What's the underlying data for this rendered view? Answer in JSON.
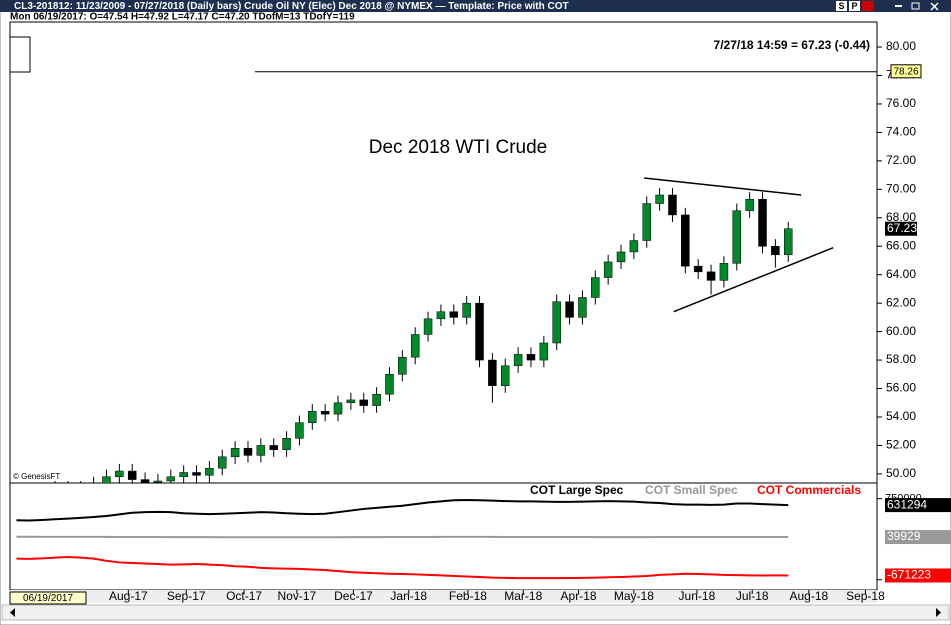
{
  "header": {
    "title": "CL3-201812:  11/23/2009 - 07/27/2018  (Daily bars)   Crude Oil NY (Elec) Dec 2018 @ NYMEX  —  Template: Price with COT",
    "buttons": [
      "S",
      "P"
    ],
    "info": "Mon 06/19/2017:  O=47.54  H=47.92  L=47.17  C=47.20  TDofM=13  TDofY=119",
    "cursor_date": "06/19/2017"
  },
  "chart_data": [
    {
      "type": "candlestick",
      "title": "Dec 2018 WTI Crude",
      "quote": "7/27/18 14:59 = 67.23 (-0.44)",
      "watermark": "© GenesisFT",
      "open": [
        47.54,
        47.2,
        47.8,
        48.3,
        49.0,
        48.6,
        49.0,
        49.3,
        49.8,
        50.2,
        49.6,
        49.4,
        49.5,
        49.8,
        50.1,
        49.9,
        50.4,
        51.2,
        51.8,
        51.3,
        52.0,
        51.7,
        52.5,
        53.6,
        54.4,
        54.2,
        55.0,
        55.2,
        54.8,
        55.6,
        57.0,
        58.2,
        59.8,
        60.9,
        61.4,
        61.0,
        62.0,
        58.0,
        56.2,
        57.6,
        58.4,
        58.0,
        59.2,
        62.1,
        61.0,
        62.4,
        63.8,
        64.9,
        65.6,
        66.4,
        69.0,
        69.6,
        68.2,
        64.6,
        64.2,
        63.6,
        64.8,
        68.5,
        69.3,
        66.0,
        65.4
      ],
      "high": [
        47.92,
        48.3,
        48.8,
        49.5,
        49.5,
        49.5,
        49.8,
        50.3,
        50.7,
        50.7,
        50.1,
        50.0,
        50.3,
        50.6,
        50.6,
        50.9,
        51.7,
        52.3,
        52.3,
        52.5,
        52.5,
        53.0,
        54.1,
        54.9,
        54.9,
        55.5,
        55.7,
        55.7,
        56.1,
        57.5,
        58.7,
        60.3,
        61.4,
        61.9,
        61.9,
        62.5,
        62.5,
        58.5,
        58.1,
        58.9,
        58.9,
        59.7,
        62.6,
        62.6,
        62.9,
        64.3,
        65.4,
        66.1,
        66.9,
        69.5,
        70.1,
        70.1,
        68.7,
        65.1,
        64.7,
        65.3,
        69.0,
        69.8,
        69.8,
        66.5,
        67.7
      ],
      "low": [
        47.17,
        46.9,
        47.3,
        47.8,
        48.1,
        48.1,
        48.5,
        48.8,
        49.3,
        49.1,
        48.9,
        48.9,
        49.0,
        49.3,
        49.4,
        49.4,
        49.9,
        50.7,
        50.8,
        50.8,
        51.2,
        51.2,
        52.0,
        53.1,
        53.7,
        53.7,
        54.5,
        54.3,
        54.3,
        55.1,
        56.5,
        57.7,
        59.3,
        60.4,
        60.5,
        60.5,
        57.5,
        55.0,
        55.7,
        57.1,
        57.5,
        57.5,
        58.7,
        60.5,
        60.5,
        61.9,
        63.3,
        64.4,
        65.1,
        65.9,
        68.5,
        67.7,
        64.1,
        63.7,
        62.6,
        63.1,
        64.3,
        68.0,
        65.5,
        64.5,
        64.9
      ],
      "close": [
        47.2,
        47.8,
        48.3,
        49.0,
        48.6,
        49.0,
        49.3,
        49.8,
        50.2,
        49.6,
        49.4,
        49.5,
        49.8,
        50.1,
        49.9,
        50.4,
        51.2,
        51.8,
        51.3,
        52.0,
        51.7,
        52.5,
        53.6,
        54.4,
        54.2,
        55.0,
        55.2,
        54.8,
        55.6,
        57.0,
        58.2,
        59.8,
        60.9,
        61.4,
        61.0,
        62.0,
        58.0,
        56.2,
        57.6,
        58.4,
        58.0,
        59.2,
        62.1,
        61.0,
        62.4,
        63.8,
        64.9,
        65.6,
        66.4,
        69.0,
        69.6,
        68.2,
        64.6,
        64.2,
        63.6,
        64.8,
        68.5,
        69.3,
        66.0,
        65.4,
        67.23
      ],
      "up_color": "#00882a",
      "down_color": "#000000",
      "ylim": [
        49.36,
        81.76
      ],
      "yticks": [
        {
          "value": 50,
          "label": "50.00"
        },
        {
          "value": 52,
          "label": "52.00"
        },
        {
          "value": 54,
          "label": "54.00"
        },
        {
          "value": 56,
          "label": "56.00"
        },
        {
          "value": 58,
          "label": "58.00"
        },
        {
          "value": 60,
          "label": "60.00"
        },
        {
          "value": 62,
          "label": "62.00"
        },
        {
          "value": 64,
          "label": "64.00"
        },
        {
          "value": 66,
          "label": "66.00"
        },
        {
          "value": 68,
          "label": "68.00"
        },
        {
          "value": 70,
          "label": "70.00"
        },
        {
          "value": 72,
          "label": "72.00"
        },
        {
          "value": 74,
          "label": "74.00"
        },
        {
          "value": 76,
          "label": "76.00"
        },
        {
          "value": 78,
          "label": "78.00"
        },
        {
          "value": 80,
          "label": "80.00"
        }
      ],
      "xlim": [
        -0.5,
        66.9
      ],
      "xticks": [
        {
          "value": 8.7,
          "label": "Aug-17"
        },
        {
          "value": 13.2,
          "label": "Sep-17"
        },
        {
          "value": 17.7,
          "label": "Oct-17"
        },
        {
          "value": 21.8,
          "label": "Nov-17"
        },
        {
          "value": 26.2,
          "label": "Dec-17"
        },
        {
          "value": 30.5,
          "label": "Jan-18"
        },
        {
          "value": 35.1,
          "label": "Feb-18"
        },
        {
          "value": 39.4,
          "label": "Mar-18"
        },
        {
          "value": 43.7,
          "label": "Apr-18"
        },
        {
          "value": 48.0,
          "label": "May-18"
        },
        {
          "value": 52.9,
          "label": "Jun-18"
        },
        {
          "value": 57.2,
          "label": "Jul-18"
        },
        {
          "value": 61.6,
          "label": "Aug-18"
        },
        {
          "value": 66.0,
          "label": "Sep-18"
        }
      ],
      "trendlines": [
        {
          "x": [
            48.8,
            61.0
          ],
          "y": [
            70.8,
            69.6
          ]
        },
        {
          "x": [
            51.1,
            63.5
          ],
          "y": [
            61.4,
            65.9
          ]
        }
      ],
      "reference_line": {
        "value": 78.26,
        "color": "#ffff99"
      }
    },
    {
      "type": "line",
      "ylim": [
        -940000,
        1040000
      ],
      "yticks": [
        -750000,
        750000
      ],
      "series": [
        {
          "name": "COT Large Spec",
          "color": "#000000",
          "values": [
            350000,
            345000,
            355000,
            370000,
            380000,
            395000,
            410000,
            430000,
            460000,
            490000,
            500000,
            505000,
            500000,
            480000,
            470000,
            465000,
            470000,
            480000,
            490000,
            500000,
            495000,
            480000,
            470000,
            465000,
            470000,
            500000,
            530000,
            560000,
            580000,
            600000,
            620000,
            650000,
            680000,
            700000,
            720000,
            725000,
            720000,
            715000,
            705000,
            700000,
            700000,
            695000,
            690000,
            690000,
            695000,
            700000,
            705000,
            700000,
            695000,
            680000,
            670000,
            650000,
            640000,
            640000,
            635000,
            640000,
            660000,
            660000,
            650000,
            640000,
            631294
          ]
        },
        {
          "name": "COT Small Spec",
          "color": "#999999",
          "values": [
            45000,
            45000,
            44000,
            44000,
            43000,
            43000,
            42000,
            42000,
            41000,
            41000,
            40000,
            40000,
            39000,
            39000,
            38000,
            38000,
            37000,
            37000,
            36000,
            36000,
            36000,
            35000,
            35000,
            35000,
            36000,
            37000,
            38000,
            38000,
            39000,
            40000,
            40000,
            41000,
            41000,
            42000,
            42000,
            42000,
            42000,
            42000,
            41000,
            41000,
            41000,
            40000,
            40000,
            40000,
            40000,
            39000,
            39000,
            39000,
            39000,
            39000,
            40000,
            40000,
            41000,
            41000,
            41000,
            40000,
            40000,
            40000,
            40000,
            40000,
            39929
          ]
        },
        {
          "name": "COT Commercials",
          "color": "#ff0000",
          "values": [
            -360000,
            -365000,
            -355000,
            -340000,
            -330000,
            -340000,
            -360000,
            -400000,
            -430000,
            -440000,
            -450000,
            -460000,
            -470000,
            -465000,
            -460000,
            -470000,
            -480000,
            -500000,
            -510000,
            -530000,
            -540000,
            -545000,
            -550000,
            -560000,
            -570000,
            -590000,
            -610000,
            -620000,
            -630000,
            -640000,
            -645000,
            -650000,
            -660000,
            -670000,
            -680000,
            -690000,
            -700000,
            -710000,
            -715000,
            -720000,
            -720000,
            -720000,
            -720000,
            -718000,
            -715000,
            -710000,
            -705000,
            -700000,
            -690000,
            -680000,
            -660000,
            -650000,
            -640000,
            -645000,
            -650000,
            -660000,
            -665000,
            -670000,
            -672000,
            -670000,
            -671223
          ]
        }
      ]
    }
  ]
}
